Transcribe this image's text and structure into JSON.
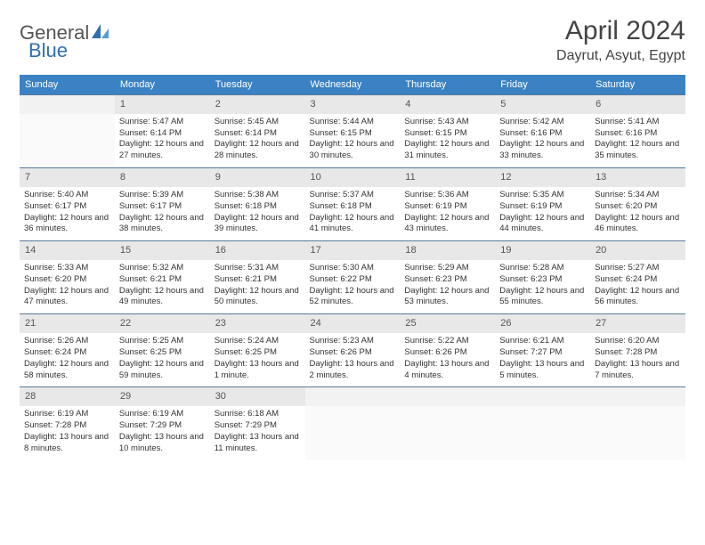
{
  "brand": {
    "part1": "General",
    "part2": "Blue",
    "accent_color": "#2f6fb0"
  },
  "title": "April 2024",
  "location": "Dayrut, Asyut, Egypt",
  "header_bg": "#3b82c4",
  "daynum_bg": "#e8e8e8",
  "daynum_border": "#5a7a9a",
  "weekdays": [
    "Sunday",
    "Monday",
    "Tuesday",
    "Wednesday",
    "Thursday",
    "Friday",
    "Saturday"
  ],
  "weeks": [
    {
      "nums": [
        "",
        "1",
        "2",
        "3",
        "4",
        "5",
        "6"
      ],
      "cells": [
        null,
        {
          "sr": "5:47 AM",
          "ss": "6:14 PM",
          "dl": "12 hours and 27 minutes."
        },
        {
          "sr": "5:45 AM",
          "ss": "6:14 PM",
          "dl": "12 hours and 28 minutes."
        },
        {
          "sr": "5:44 AM",
          "ss": "6:15 PM",
          "dl": "12 hours and 30 minutes."
        },
        {
          "sr": "5:43 AM",
          "ss": "6:15 PM",
          "dl": "12 hours and 31 minutes."
        },
        {
          "sr": "5:42 AM",
          "ss": "6:16 PM",
          "dl": "12 hours and 33 minutes."
        },
        {
          "sr": "5:41 AM",
          "ss": "6:16 PM",
          "dl": "12 hours and 35 minutes."
        }
      ]
    },
    {
      "nums": [
        "7",
        "8",
        "9",
        "10",
        "11",
        "12",
        "13"
      ],
      "cells": [
        {
          "sr": "5:40 AM",
          "ss": "6:17 PM",
          "dl": "12 hours and 36 minutes."
        },
        {
          "sr": "5:39 AM",
          "ss": "6:17 PM",
          "dl": "12 hours and 38 minutes."
        },
        {
          "sr": "5:38 AM",
          "ss": "6:18 PM",
          "dl": "12 hours and 39 minutes."
        },
        {
          "sr": "5:37 AM",
          "ss": "6:18 PM",
          "dl": "12 hours and 41 minutes."
        },
        {
          "sr": "5:36 AM",
          "ss": "6:19 PM",
          "dl": "12 hours and 43 minutes."
        },
        {
          "sr": "5:35 AM",
          "ss": "6:19 PM",
          "dl": "12 hours and 44 minutes."
        },
        {
          "sr": "5:34 AM",
          "ss": "6:20 PM",
          "dl": "12 hours and 46 minutes."
        }
      ]
    },
    {
      "nums": [
        "14",
        "15",
        "16",
        "17",
        "18",
        "19",
        "20"
      ],
      "cells": [
        {
          "sr": "5:33 AM",
          "ss": "6:20 PM",
          "dl": "12 hours and 47 minutes."
        },
        {
          "sr": "5:32 AM",
          "ss": "6:21 PM",
          "dl": "12 hours and 49 minutes."
        },
        {
          "sr": "5:31 AM",
          "ss": "6:21 PM",
          "dl": "12 hours and 50 minutes."
        },
        {
          "sr": "5:30 AM",
          "ss": "6:22 PM",
          "dl": "12 hours and 52 minutes."
        },
        {
          "sr": "5:29 AM",
          "ss": "6:23 PM",
          "dl": "12 hours and 53 minutes."
        },
        {
          "sr": "5:28 AM",
          "ss": "6:23 PM",
          "dl": "12 hours and 55 minutes."
        },
        {
          "sr": "5:27 AM",
          "ss": "6:24 PM",
          "dl": "12 hours and 56 minutes."
        }
      ]
    },
    {
      "nums": [
        "21",
        "22",
        "23",
        "24",
        "25",
        "26",
        "27"
      ],
      "cells": [
        {
          "sr": "5:26 AM",
          "ss": "6:24 PM",
          "dl": "12 hours and 58 minutes."
        },
        {
          "sr": "5:25 AM",
          "ss": "6:25 PM",
          "dl": "12 hours and 59 minutes."
        },
        {
          "sr": "5:24 AM",
          "ss": "6:25 PM",
          "dl": "13 hours and 1 minute."
        },
        {
          "sr": "5:23 AM",
          "ss": "6:26 PM",
          "dl": "13 hours and 2 minutes."
        },
        {
          "sr": "5:22 AM",
          "ss": "6:26 PM",
          "dl": "13 hours and 4 minutes."
        },
        {
          "sr": "6:21 AM",
          "ss": "7:27 PM",
          "dl": "13 hours and 5 minutes."
        },
        {
          "sr": "6:20 AM",
          "ss": "7:28 PM",
          "dl": "13 hours and 7 minutes."
        }
      ]
    },
    {
      "nums": [
        "28",
        "29",
        "30",
        "",
        "",
        "",
        ""
      ],
      "cells": [
        {
          "sr": "6:19 AM",
          "ss": "7:28 PM",
          "dl": "13 hours and 8 minutes."
        },
        {
          "sr": "6:19 AM",
          "ss": "7:29 PM",
          "dl": "13 hours and 10 minutes."
        },
        {
          "sr": "6:18 AM",
          "ss": "7:29 PM",
          "dl": "13 hours and 11 minutes."
        },
        null,
        null,
        null,
        null
      ]
    }
  ],
  "labels": {
    "sunrise": "Sunrise:",
    "sunset": "Sunset:",
    "daylight": "Daylight:"
  }
}
